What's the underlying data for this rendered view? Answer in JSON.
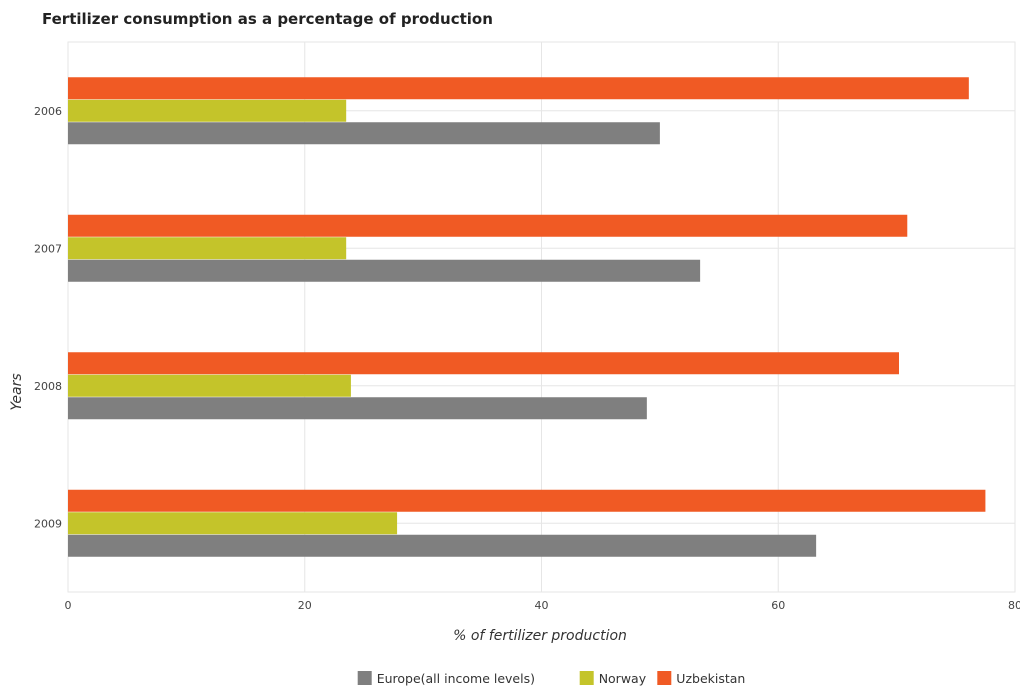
{
  "chart_data": {
    "type": "bar",
    "orientation": "horizontal",
    "title": "Fertilizer consumption as a percentage of production",
    "xlabel": "% of fertilizer production",
    "ylabel": "Years",
    "categories": [
      "2006",
      "2007",
      "2008",
      "2009"
    ],
    "series": [
      {
        "name": "Europe(all income levels)",
        "color": "#7f7f7f",
        "values": [
          50.0,
          53.4,
          48.9,
          63.2
        ]
      },
      {
        "name": "Norway",
        "color": "#c4c42a",
        "values": [
          23.5,
          23.5,
          23.9,
          27.8
        ]
      },
      {
        "name": "Uzbekistan",
        "color": "#f05a24",
        "values": [
          76.1,
          70.9,
          70.2,
          77.5
        ]
      }
    ],
    "xlim": [
      0,
      80
    ],
    "xticks": [
      0,
      20,
      40,
      60,
      80
    ],
    "grid": true,
    "legend_position": "bottom"
  }
}
